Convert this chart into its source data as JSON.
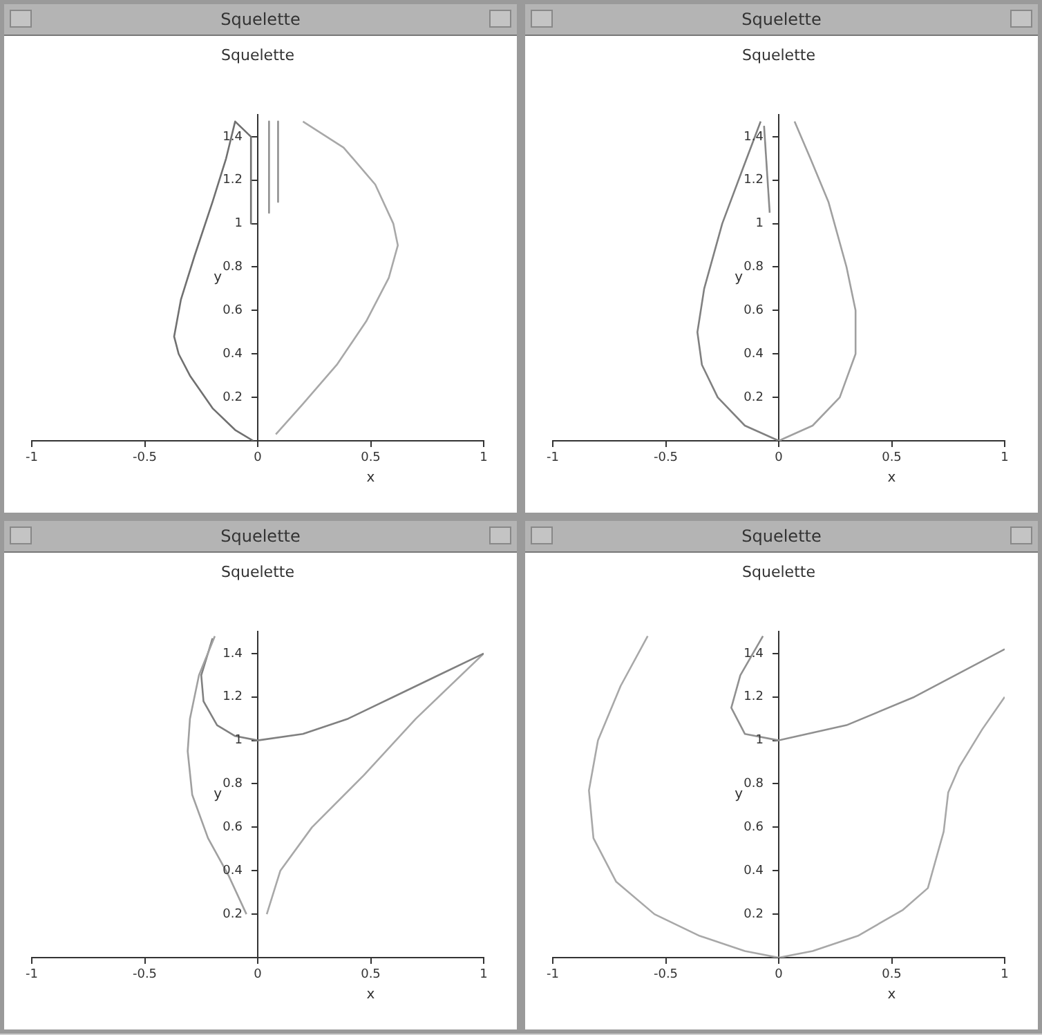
{
  "chart_data": [
    {
      "type": "line",
      "title": "Squelette",
      "subtitle": "Squelette",
      "xlabel": "x",
      "ylabel": "y",
      "xlim": [
        -1,
        1
      ],
      "ylim": [
        0,
        1.5
      ],
      "xticks": [
        -1,
        -0.5,
        0,
        0.5,
        1
      ],
      "yticks": [
        0.2,
        0.4,
        0.6,
        0.8,
        1,
        1.2,
        1.4
      ],
      "marker": "none",
      "grid": false,
      "legend": false,
      "series": [
        {
          "color": "#707070",
          "x": [
            -0.02,
            -0.1,
            -0.2,
            -0.3,
            -0.35,
            -0.37,
            -0.34,
            -0.28,
            -0.2,
            -0.14,
            -0.1,
            -0.03,
            -0.03
          ],
          "values": [
            0,
            0.05,
            0.15,
            0.3,
            0.4,
            0.48,
            0.65,
            0.85,
            1.1,
            1.3,
            1.47,
            1.4,
            1
          ]
        },
        {
          "color": "#909090",
          "x": [
            0.05,
            0.05
          ],
          "values": [
            1.47,
            1.05
          ]
        },
        {
          "color": "#909090",
          "x": [
            0.09,
            0.09
          ],
          "values": [
            1.47,
            1.1
          ]
        },
        {
          "color": "#a8a8a8",
          "x": [
            0.2,
            0.38,
            0.52,
            0.6,
            0.62,
            0.58,
            0.48,
            0.35,
            0.2,
            0.08
          ],
          "values": [
            1.47,
            1.35,
            1.18,
            1,
            0.9,
            0.75,
            0.55,
            0.35,
            0.17,
            0.03
          ]
        }
      ]
    },
    {
      "type": "line",
      "title": "Squelette",
      "subtitle": "Squelette",
      "xlabel": "x",
      "ylabel": "y",
      "xlim": [
        -1,
        1
      ],
      "ylim": [
        0,
        1.5
      ],
      "xticks": [
        -1,
        -0.5,
        0,
        0.5,
        1
      ],
      "yticks": [
        0.2,
        0.4,
        0.6,
        0.8,
        1,
        1.2,
        1.4
      ],
      "marker": "none",
      "grid": false,
      "legend": false,
      "series": [
        {
          "color": "#808080",
          "x": [
            0,
            -0.15,
            -0.27,
            -0.34,
            -0.36,
            -0.33,
            -0.25,
            -0.16,
            -0.08
          ],
          "values": [
            0,
            0.07,
            0.2,
            0.35,
            0.5,
            0.7,
            1,
            1.25,
            1.47
          ]
        },
        {
          "color": "#a0a0a0",
          "x": [
            0,
            0.15,
            0.27,
            0.34,
            0.34,
            0.3,
            0.22,
            0.14,
            0.07
          ],
          "values": [
            0,
            0.07,
            0.2,
            0.4,
            0.6,
            0.8,
            1.1,
            1.3,
            1.47
          ]
        },
        {
          "color": "#8a8a8a",
          "x": [
            -0.065,
            -0.04
          ],
          "values": [
            1.45,
            1.05
          ]
        }
      ]
    },
    {
      "type": "line",
      "title": "Squelette",
      "subtitle": "Squelette",
      "xlabel": "x",
      "ylabel": "y",
      "xlim": [
        -1,
        1
      ],
      "ylim": [
        0,
        1.5
      ],
      "xticks": [
        -1,
        -0.5,
        0,
        0.5,
        1
      ],
      "yticks": [
        0.2,
        0.4,
        0.6,
        0.8,
        1,
        1.2,
        1.4
      ],
      "marker": "none",
      "grid": false,
      "legend": false,
      "series": [
        {
          "color": "#a0a0a0",
          "x": [
            -0.19,
            -0.26,
            -0.3,
            -0.31,
            -0.29,
            -0.22,
            -0.13,
            -0.05
          ],
          "values": [
            1.48,
            1.3,
            1.1,
            0.95,
            0.75,
            0.55,
            0.38,
            0.2
          ]
        },
        {
          "color": "#808080",
          "x": [
            -0.2,
            -0.25,
            -0.24,
            -0.18,
            -0.1,
            0,
            0.2,
            0.4,
            0.6,
            0.8,
            1
          ],
          "values": [
            1.47,
            1.3,
            1.18,
            1.07,
            1.02,
            1,
            1.03,
            1.1,
            1.2,
            1.3,
            1.4
          ]
        },
        {
          "color": "#a8a8a8",
          "x": [
            0.04,
            0.1,
            0.24,
            0.47,
            0.7,
            1
          ],
          "values": [
            0.2,
            0.4,
            0.6,
            0.84,
            1.1,
            1.4
          ]
        }
      ]
    },
    {
      "type": "line",
      "title": "Squelette",
      "subtitle": "Squelette",
      "xlabel": "x",
      "ylabel": "y",
      "xlim": [
        -1,
        1
      ],
      "ylim": [
        0,
        1.5
      ],
      "xticks": [
        -1,
        -0.5,
        0,
        0.5,
        1
      ],
      "yticks": [
        0.2,
        0.4,
        0.6,
        0.8,
        1,
        1.2,
        1.4
      ],
      "marker": "none",
      "grid": false,
      "legend": false,
      "series": [
        {
          "color": "#a8a8a8",
          "x": [
            -0.58,
            -0.7,
            -0.8,
            -0.84,
            -0.82,
            -0.72,
            -0.55,
            -0.35,
            -0.15,
            0,
            0.15,
            0.35,
            0.55,
            0.66,
            0.73,
            0.75,
            0.8,
            0.9,
            1
          ],
          "values": [
            1.48,
            1.25,
            1,
            0.77,
            0.55,
            0.35,
            0.2,
            0.1,
            0.03,
            0,
            0.03,
            0.1,
            0.22,
            0.32,
            0.58,
            0.76,
            0.88,
            1.05,
            1.2
          ]
        },
        {
          "color": "#909090",
          "x": [
            -0.07,
            -0.17,
            -0.21,
            -0.15,
            0,
            0.3,
            0.6,
            1
          ],
          "values": [
            1.48,
            1.3,
            1.15,
            1.03,
            1,
            1.07,
            1.2,
            1.42
          ]
        }
      ]
    }
  ]
}
